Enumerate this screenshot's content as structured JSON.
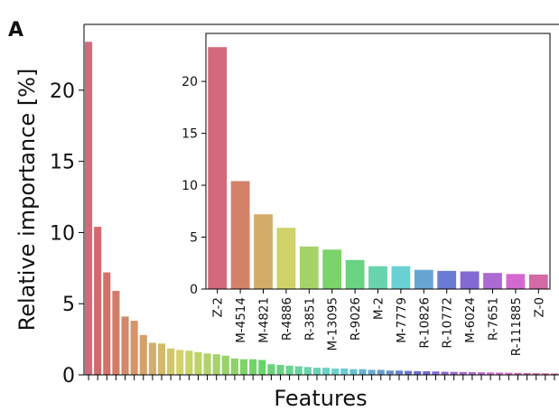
{
  "panel_label": "A",
  "chart_data": [
    {
      "type": "bar",
      "xlabel": "Features",
      "ylabel": "Relative importance [%]",
      "ylim": [
        0,
        24.5
      ],
      "yticks": [
        0,
        5,
        10,
        15,
        20
      ],
      "xticklabels_shown": false,
      "values": [
        23.4,
        10.4,
        7.2,
        5.9,
        4.1,
        3.8,
        2.8,
        2.25,
        2.2,
        1.85,
        1.75,
        1.7,
        1.6,
        1.5,
        1.45,
        1.35,
        1.15,
        1.1,
        1.1,
        1.05,
        0.75,
        0.7,
        0.65,
        0.6,
        0.55,
        0.5,
        0.5,
        0.45,
        0.45,
        0.4,
        0.4,
        0.35,
        0.35,
        0.3,
        0.3,
        0.28,
        0.26,
        0.25,
        0.24,
        0.22,
        0.21,
        0.2,
        0.19,
        0.18,
        0.17,
        0.16,
        0.15,
        0.14,
        0.13,
        0.12,
        0.11,
        0.1
      ],
      "grid": false
    },
    {
      "type": "bar",
      "inset": true,
      "categories": [
        "Z-2",
        "M-4514",
        "M-4821",
        "R-4886",
        "R-3851",
        "M-13095",
        "R-9026",
        "M-2",
        "M-7779",
        "R-10826",
        "R-10772",
        "M-6024",
        "R-7651",
        "R-111885",
        "Z-0"
      ],
      "values": [
        23.3,
        10.4,
        7.2,
        5.9,
        4.1,
        3.8,
        2.8,
        2.2,
        2.2,
        1.85,
        1.75,
        1.7,
        1.55,
        1.45,
        1.4
      ],
      "ylim": [
        0,
        24.5
      ],
      "yticks": [
        0,
        5,
        10,
        15,
        20
      ],
      "grid": false
    }
  ]
}
